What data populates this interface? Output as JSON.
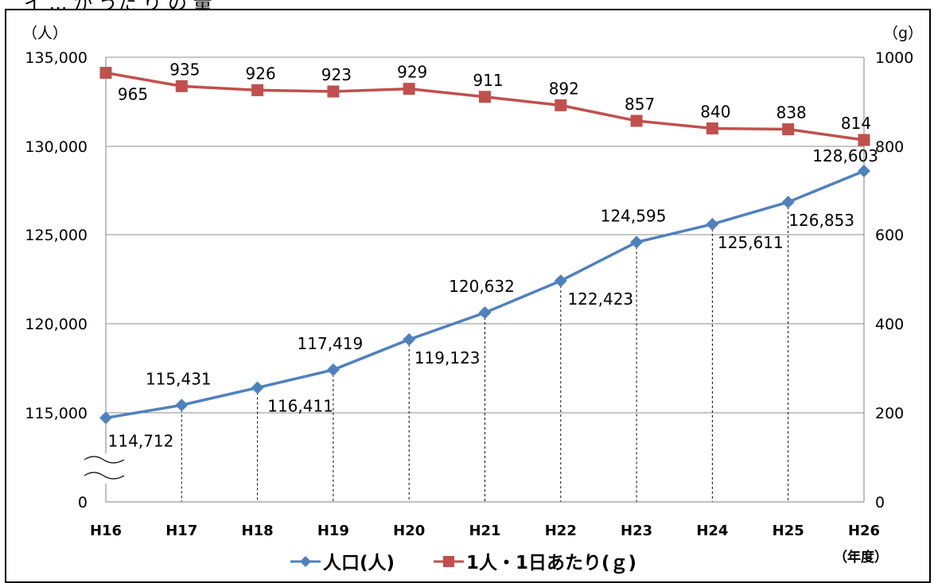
{
  "page": {
    "heading_fragment": "イ ...  か うた り の  量"
  },
  "chart_data": {
    "type": "line",
    "categories": [
      "H16",
      "H17",
      "H18",
      "H19",
      "H20",
      "H21",
      "H22",
      "H23",
      "H24",
      "H25",
      "H26"
    ],
    "x_unit": "（年度）",
    "left_axis": {
      "unit": "（人）",
      "break": true,
      "ticks": [
        "135,000",
        "130,000",
        "125,000",
        "120,000",
        "115,000",
        "0"
      ],
      "range": [
        114000,
        135000
      ]
    },
    "right_axis": {
      "unit": "（g）",
      "ticks": [
        "1000",
        "800",
        "600",
        "400",
        "200",
        "0"
      ],
      "range": [
        0,
        1000
      ]
    },
    "grid": true,
    "legend_position": "bottom",
    "series": [
      {
        "name": "人口(人)",
        "axis": "left",
        "color": "#4f81bd",
        "marker": "diamond",
        "values": [
          114712,
          115431,
          116411,
          117419,
          119123,
          120632,
          122423,
          124595,
          125611,
          126853,
          128603
        ],
        "labels": [
          "114,712",
          "115,431",
          "116,411",
          "117,419",
          "119,123",
          "120,632",
          "122,423",
          "124,595",
          "125,611",
          "126,853",
          "128,603"
        ]
      },
      {
        "name": "1人・1日あたり(ｇ)",
        "axis": "right",
        "color": "#c0504d",
        "marker": "square",
        "values": [
          965,
          935,
          926,
          923,
          929,
          911,
          892,
          857,
          840,
          838,
          814
        ],
        "labels": [
          "965",
          "935",
          "926",
          "923",
          "929",
          "911",
          "892",
          "857",
          "840",
          "838",
          "814"
        ]
      }
    ]
  }
}
